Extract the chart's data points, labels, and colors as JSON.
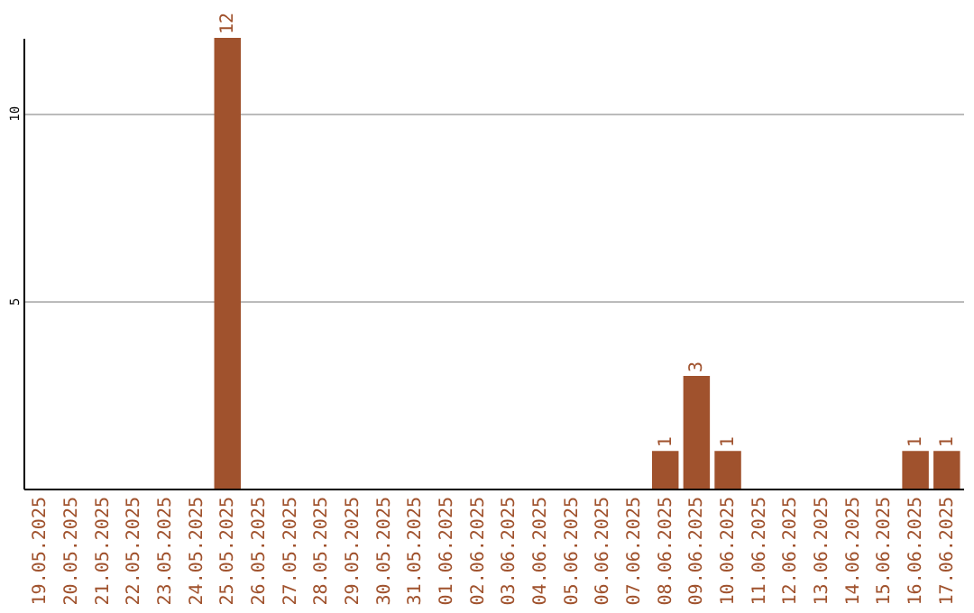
{
  "chart_data": {
    "type": "bar",
    "categories": [
      "19.05.2025",
      "20.05.2025",
      "21.05.2025",
      "22.05.2025",
      "23.05.2025",
      "24.05.2025",
      "25.05.2025",
      "26.05.2025",
      "27.05.2025",
      "28.05.2025",
      "29.05.2025",
      "30.05.2025",
      "31.05.2025",
      "01.06.2025",
      "02.06.2025",
      "03.06.2025",
      "04.06.2025",
      "05.06.2025",
      "06.06.2025",
      "07.06.2025",
      "08.06.2025",
      "09.06.2025",
      "10.06.2025",
      "11.06.2025",
      "12.06.2025",
      "13.06.2025",
      "14.06.2025",
      "15.06.2025",
      "16.06.2025",
      "17.06.2025"
    ],
    "values": [
      0,
      0,
      0,
      0,
      0,
      0,
      12,
      0,
      0,
      0,
      0,
      0,
      0,
      0,
      0,
      0,
      0,
      0,
      0,
      0,
      1,
      3,
      1,
      0,
      0,
      0,
      0,
      0,
      1,
      1
    ],
    "value_labels": [
      null,
      null,
      null,
      null,
      null,
      null,
      "12",
      null,
      null,
      null,
      null,
      null,
      null,
      null,
      null,
      null,
      null,
      null,
      null,
      null,
      "1",
      "3",
      "1",
      null,
      null,
      null,
      null,
      null,
      "1",
      "1"
    ],
    "color": "#a0522d",
    "ylim": [
      0,
      12
    ],
    "yticks": [
      5,
      10
    ],
    "grid": "y"
  }
}
